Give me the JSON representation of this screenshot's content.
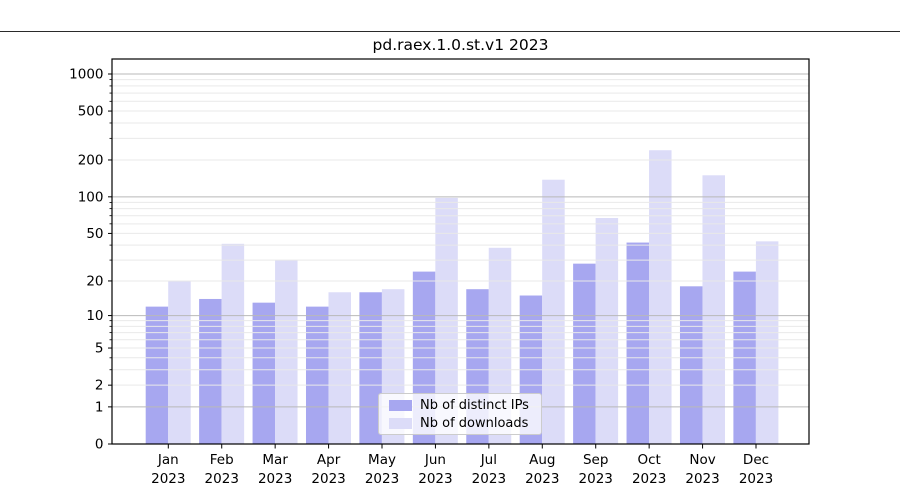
{
  "chart_data": {
    "type": "bar",
    "title": "pd.raex.1.0.st.v1 2023",
    "categories": [
      "Jan 2023",
      "Feb 2023",
      "Mar 2023",
      "Apr 2023",
      "May 2023",
      "Jun 2023",
      "Jul 2023",
      "Aug 2023",
      "Sep 2023",
      "Oct 2023",
      "Nov 2023",
      "Dec 2023"
    ],
    "series": [
      {
        "name": "Nb of distinct IPs",
        "color": "#a7a7f0",
        "values": [
          12,
          14,
          13,
          12,
          16,
          24,
          17,
          15,
          28,
          42,
          18,
          24
        ]
      },
      {
        "name": "Nb of downloads",
        "color": "#dcdcf8",
        "values": [
          20,
          41,
          30,
          16,
          17,
          98,
          38,
          138,
          67,
          240,
          150,
          43
        ]
      }
    ],
    "yscale": "log1p",
    "y_ticks": [
      0,
      1,
      2,
      5,
      10,
      20,
      50,
      100,
      200,
      500,
      1000
    ],
    "ylim": [
      0,
      1320
    ],
    "grid": true,
    "legend_position": "inside bottom-center",
    "colors": {
      "major_gridline": "#b9b9b9",
      "minor_gridline": "#e9e9e9",
      "axis_spine": "#000000"
    }
  }
}
